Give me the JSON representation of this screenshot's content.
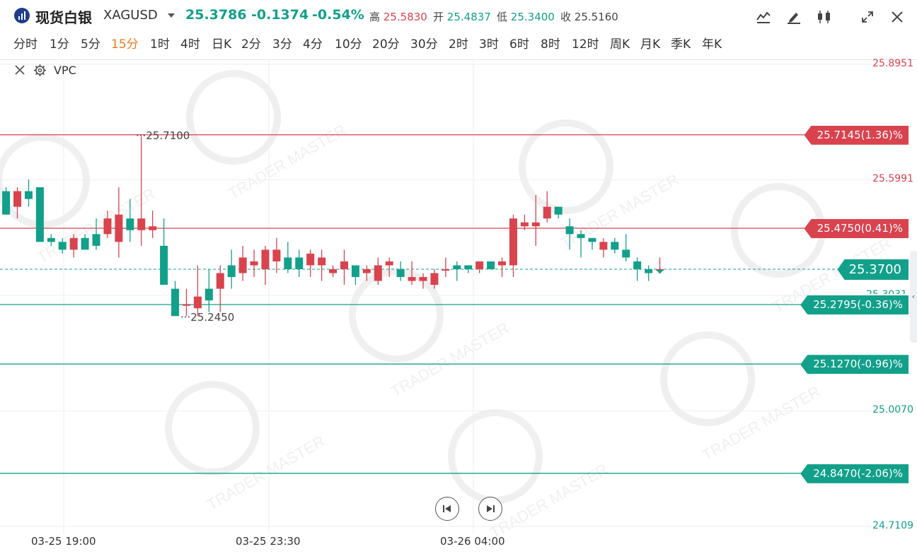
{
  "header": {
    "title": "现货白银",
    "symbol": "XAGUSD",
    "price": "25.3786",
    "change": "-0.1374",
    "change_pct": "-0.54%",
    "high_label": "高",
    "high": "25.5830",
    "open_label": "开",
    "open": "25.4837",
    "low_label": "低",
    "low": "25.3400",
    "close_label": "收",
    "close": "25.5160",
    "tools": [
      "indicator-icon",
      "draw-pencil-icon",
      "candlestick-icon",
      "expand-icon",
      "close-icon"
    ]
  },
  "periods": [
    "分时",
    "1分",
    "5分",
    "15分",
    "1时",
    "4时",
    "日K",
    "2分",
    "3分",
    "4分",
    "10分",
    "20分",
    "30分",
    "2时",
    "3时",
    "6时",
    "8时",
    "12时",
    "周K",
    "月K",
    "季K",
    "年K"
  ],
  "active_period": "15分",
  "indicator": {
    "label": "VPC"
  },
  "y_axis": {
    "labels": [
      {
        "v": 25.8951,
        "t": "25.8951",
        "c": "up"
      },
      {
        "v": 25.5991,
        "t": "25.5991",
        "c": "up"
      },
      {
        "v": 25.007,
        "t": "25.0070",
        "c": "dn"
      },
      {
        "v": 24.7109,
        "t": "24.7109",
        "c": "dn"
      }
    ],
    "partial_label": "25.3031"
  },
  "price_lines": [
    {
      "v": 25.7145,
      "t": "25.7145(1.36)%",
      "c": "red"
    },
    {
      "v": 25.475,
      "t": "25.4750(0.41)%",
      "c": "red"
    },
    {
      "v": 25.2795,
      "t": "25.2795(-0.36)%",
      "c": "green"
    },
    {
      "v": 25.127,
      "t": "25.1270(-0.96)%",
      "c": "green"
    },
    {
      "v": 24.847,
      "t": "24.8470(-2.06)%",
      "c": "green"
    }
  ],
  "current_price": {
    "v": 25.37,
    "t": "25.3700"
  },
  "annotations": [
    {
      "t": "25.7100",
      "v": 25.71
    },
    {
      "t": "25.2450",
      "v": 25.245
    }
  ],
  "x_axis": [
    "03-25 19:00",
    "03-25 23:30",
    "03-26 04:00"
  ],
  "watermark": "TRADER MASTER",
  "chart_data": {
    "type": "candlestick",
    "ylim": [
      24.7109,
      25.8951
    ],
    "candles": [
      {
        "o": 25.57,
        "h": 25.58,
        "l": 25.51,
        "c": 25.51
      },
      {
        "o": 25.53,
        "h": 25.58,
        "l": 25.5,
        "c": 25.57
      },
      {
        "o": 25.57,
        "h": 25.6,
        "l": 25.53,
        "c": 25.55
      },
      {
        "o": 25.58,
        "h": 25.58,
        "l": 25.44,
        "c": 25.44
      },
      {
        "o": 25.45,
        "h": 25.46,
        "l": 25.43,
        "c": 25.44
      },
      {
        "o": 25.44,
        "h": 25.45,
        "l": 25.41,
        "c": 25.42
      },
      {
        "o": 25.42,
        "h": 25.46,
        "l": 25.4,
        "c": 25.45
      },
      {
        "o": 25.45,
        "h": 25.46,
        "l": 25.42,
        "c": 25.42
      },
      {
        "o": 25.46,
        "h": 25.5,
        "l": 25.42,
        "c": 25.43
      },
      {
        "o": 25.46,
        "h": 25.52,
        "l": 25.45,
        "c": 25.5
      },
      {
        "o": 25.44,
        "h": 25.58,
        "l": 25.4,
        "c": 25.51
      },
      {
        "o": 25.5,
        "h": 25.55,
        "l": 25.44,
        "c": 25.47
      },
      {
        "o": 25.47,
        "h": 25.71,
        "l": 25.43,
        "c": 25.5
      },
      {
        "o": 25.47,
        "h": 25.52,
        "l": 25.45,
        "c": 25.48
      },
      {
        "o": 25.43,
        "h": 25.5,
        "l": 25.33,
        "c": 25.33
      },
      {
        "o": 25.32,
        "h": 25.34,
        "l": 25.25,
        "c": 25.25
      },
      {
        "o": 25.28,
        "h": 25.32,
        "l": 25.25,
        "c": 25.28
      },
      {
        "o": 25.27,
        "h": 25.38,
        "l": 25.25,
        "c": 25.3
      },
      {
        "o": 25.32,
        "h": 25.37,
        "l": 25.26,
        "c": 25.29
      },
      {
        "o": 25.32,
        "h": 25.38,
        "l": 25.26,
        "c": 25.36
      },
      {
        "o": 25.38,
        "h": 25.42,
        "l": 25.32,
        "c": 25.35
      },
      {
        "o": 25.36,
        "h": 25.43,
        "l": 25.34,
        "c": 25.4
      },
      {
        "o": 25.38,
        "h": 25.42,
        "l": 25.35,
        "c": 25.39
      },
      {
        "o": 25.37,
        "h": 25.43,
        "l": 25.33,
        "c": 25.42
      },
      {
        "o": 25.39,
        "h": 25.45,
        "l": 25.36,
        "c": 25.42
      },
      {
        "o": 25.4,
        "h": 25.44,
        "l": 25.36,
        "c": 25.37
      },
      {
        "o": 25.4,
        "h": 25.42,
        "l": 25.35,
        "c": 25.37
      },
      {
        "o": 25.38,
        "h": 25.42,
        "l": 25.35,
        "c": 25.41
      },
      {
        "o": 25.38,
        "h": 25.42,
        "l": 25.34,
        "c": 25.4
      },
      {
        "o": 25.36,
        "h": 25.38,
        "l": 25.35,
        "c": 25.37
      },
      {
        "o": 25.37,
        "h": 25.42,
        "l": 25.33,
        "c": 25.39
      },
      {
        "o": 25.38,
        "h": 25.38,
        "l": 25.33,
        "c": 25.35
      },
      {
        "o": 25.36,
        "h": 25.38,
        "l": 25.34,
        "c": 25.37
      },
      {
        "o": 25.34,
        "h": 25.4,
        "l": 25.33,
        "c": 25.38
      },
      {
        "o": 25.38,
        "h": 25.4,
        "l": 25.35,
        "c": 25.39
      },
      {
        "o": 25.37,
        "h": 25.39,
        "l": 25.34,
        "c": 25.35
      },
      {
        "o": 25.34,
        "h": 25.39,
        "l": 25.33,
        "c": 25.35
      },
      {
        "o": 25.34,
        "h": 25.36,
        "l": 25.32,
        "c": 25.35
      },
      {
        "o": 25.33,
        "h": 25.37,
        "l": 25.32,
        "c": 25.36
      },
      {
        "o": 25.37,
        "h": 25.4,
        "l": 25.35,
        "c": 25.37
      },
      {
        "o": 25.38,
        "h": 25.39,
        "l": 25.34,
        "c": 25.37
      },
      {
        "o": 25.38,
        "h": 25.38,
        "l": 25.36,
        "c": 25.37
      },
      {
        "o": 25.37,
        "h": 25.39,
        "l": 25.36,
        "c": 25.39
      },
      {
        "o": 25.39,
        "h": 25.39,
        "l": 25.37,
        "c": 25.37
      },
      {
        "o": 25.38,
        "h": 25.4,
        "l": 25.35,
        "c": 25.39
      },
      {
        "o": 25.38,
        "h": 25.51,
        "l": 25.35,
        "c": 25.5
      },
      {
        "o": 25.48,
        "h": 25.51,
        "l": 25.47,
        "c": 25.49
      },
      {
        "o": 25.48,
        "h": 25.56,
        "l": 25.43,
        "c": 25.49
      },
      {
        "o": 25.5,
        "h": 25.57,
        "l": 25.49,
        "c": 25.53
      },
      {
        "o": 25.53,
        "h": 25.53,
        "l": 25.5,
        "c": 25.51
      },
      {
        "o": 25.48,
        "h": 25.5,
        "l": 25.42,
        "c": 25.46
      },
      {
        "o": 25.46,
        "h": 25.47,
        "l": 25.4,
        "c": 25.45
      },
      {
        "o": 25.45,
        "h": 25.45,
        "l": 25.42,
        "c": 25.44
      },
      {
        "o": 25.42,
        "h": 25.45,
        "l": 25.4,
        "c": 25.44
      },
      {
        "o": 25.44,
        "h": 25.45,
        "l": 25.41,
        "c": 25.42
      },
      {
        "o": 25.42,
        "h": 25.46,
        "l": 25.39,
        "c": 25.4
      },
      {
        "o": 25.39,
        "h": 25.4,
        "l": 25.34,
        "c": 25.37
      },
      {
        "o": 25.37,
        "h": 25.38,
        "l": 25.34,
        "c": 25.36
      },
      {
        "o": 25.37,
        "h": 25.4,
        "l": 25.36,
        "c": 25.37
      }
    ]
  }
}
